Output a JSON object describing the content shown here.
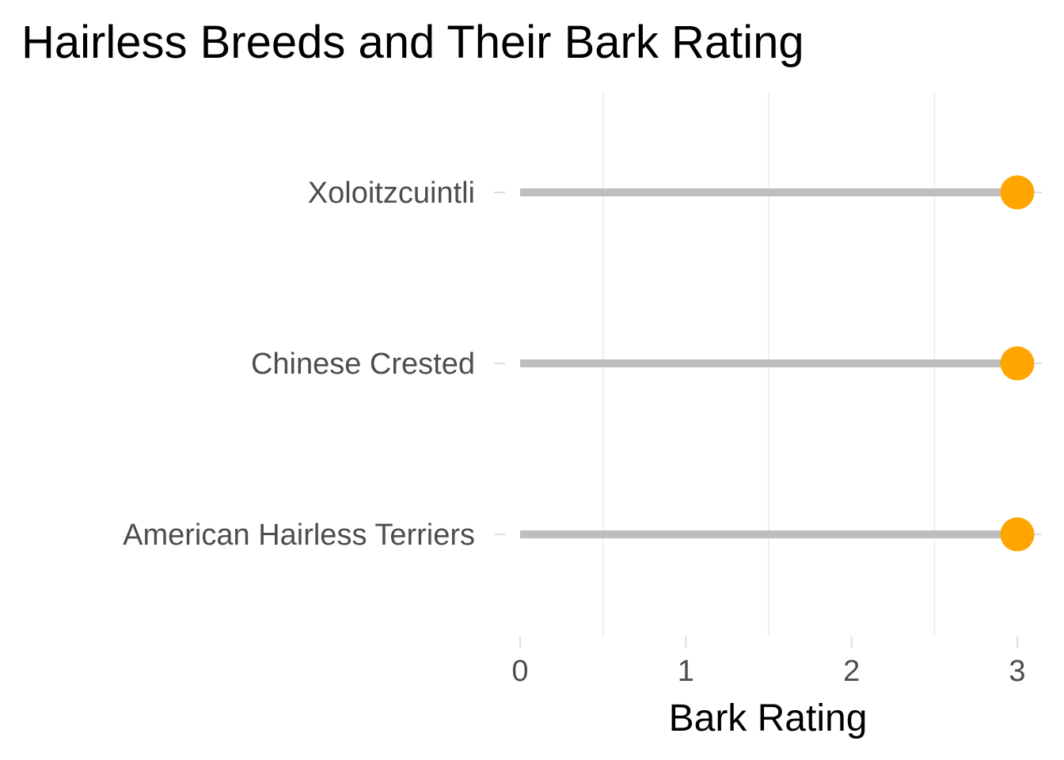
{
  "chart_data": {
    "type": "lollipop",
    "title": "Hairless Breeds and Their Bark Rating",
    "xlabel": "Bark Rating",
    "ylabel": "",
    "categories": [
      "Xoloitzcuintli",
      "Chinese Crested",
      "American Hairless Terriers"
    ],
    "values": [
      3,
      3,
      3
    ],
    "xlim": [
      0,
      3
    ],
    "x_ticks": [
      0,
      1,
      2,
      3
    ],
    "x_tick_labels": [
      "0",
      "1",
      "2",
      "3"
    ],
    "grid": "vertical-major-and-minor",
    "legend": "none",
    "colors": {
      "point": "#FFA500",
      "stem": "#BEBEBE",
      "grid": "#EBEBEB",
      "tick": "#DEDEDE"
    }
  }
}
